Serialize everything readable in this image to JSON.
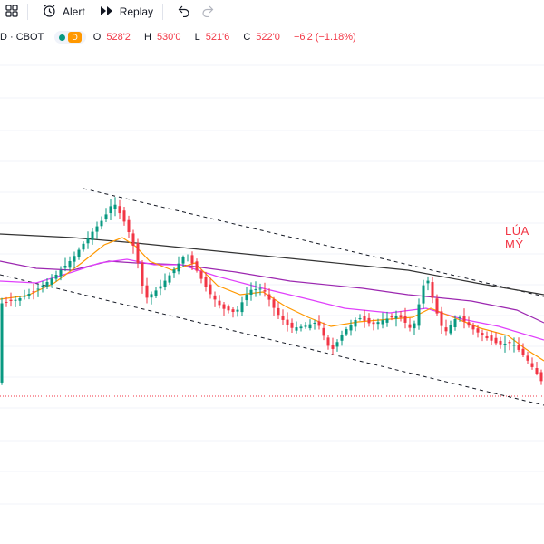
{
  "toolbar": {
    "layout_icon": "grid-layout-icon",
    "alert_label": "Alert",
    "replay_label": "Replay",
    "undo_icon": "undo-icon",
    "redo_icon": "redo-icon"
  },
  "legend": {
    "symbol": "D · CBOT",
    "badge": "D",
    "open_key": "O",
    "open": "528'2",
    "high_key": "H",
    "high": "530'0",
    "low_key": "L",
    "low": "521'6",
    "close_key": "C",
    "close": "522'0",
    "change": "−6'2 (−1.18%)"
  },
  "annotation": "LÚA MỲ",
  "colors": {
    "up": "#089981",
    "down": "#f23645",
    "ma_black": "#333333",
    "ma_purple": "#9c27b0",
    "ma_pink": "#e040fb",
    "ma_orange": "#ff9800"
  }
}
